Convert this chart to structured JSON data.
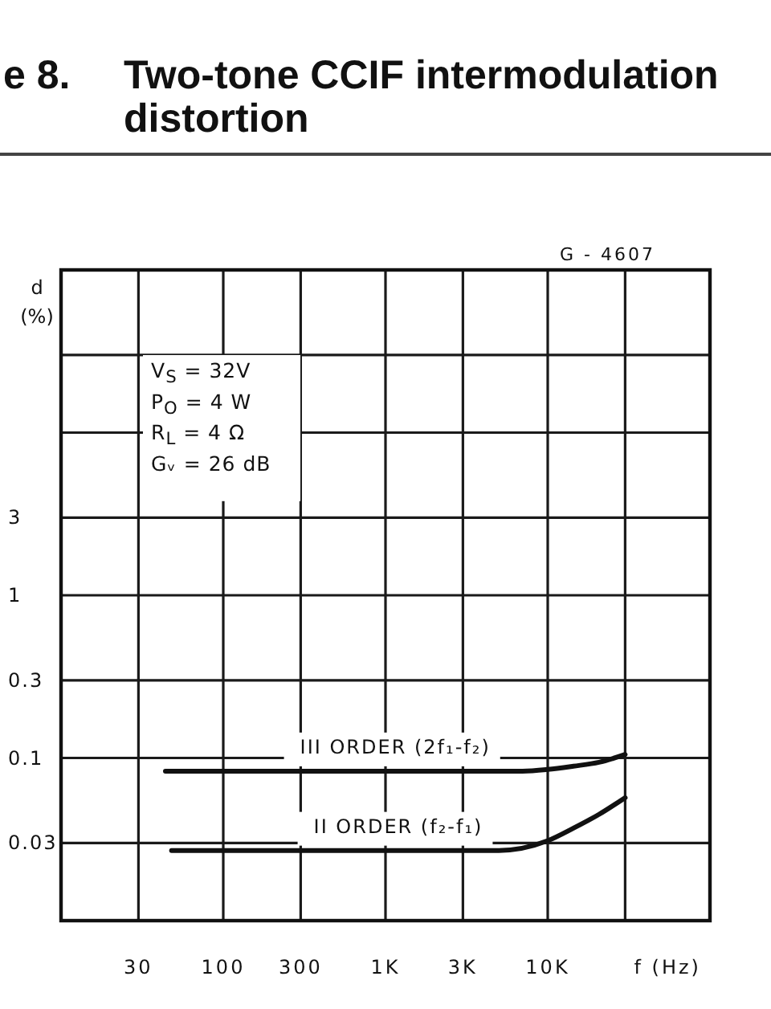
{
  "chart_data": {
    "type": "line",
    "title": "Two-tone CCIF intermodulation distortion",
    "xlabel": "f (Hz)",
    "ylabel": "d (%)",
    "annotations": [
      "e 8.",
      "G - 4607",
      "V$_{S}$ = 32V",
      "P$_{O}$ = 4 W",
      "R$_{L}$ = 4 Ω",
      "Gᵥ = 26 dB"
    ],
    "log": "xy",
    "grid": true,
    "line_style": "solid",
    "xlim": [
      10,
      100000
    ],
    "xticks": [
      30,
      100,
      300,
      {
        "value": 1000,
        "label": "1K"
      },
      {
        "value": 3000,
        "label": "3K"
      },
      {
        "value": 10000,
        "label": "10K"
      },
      {
        "value": 30000,
        "label": null
      }
    ],
    "ylim": [
      0.01,
      100
    ],
    "yticks": [
      0.03,
      0.1,
      0.3,
      1,
      3,
      {
        "value": 10,
        "label": null
      },
      {
        "value": 30,
        "label": null
      }
    ],
    "series": [
      {
        "name": "III ORDER (2f₁-f₂)",
        "color": "#111111",
        "x": [
          44,
          7000,
          10000,
          14400,
          20700,
          30000
        ],
        "values": [
          0.083,
          0.083,
          0.085,
          0.089,
          0.094,
          0.105
        ]
      },
      {
        "name": "II ORDER (f₂-f₁)",
        "color": "#111111",
        "x": [
          48,
          5000,
          10000,
          14400,
          20700,
          30000
        ],
        "values": [
          0.027,
          0.027,
          0.031,
          0.037,
          0.045,
          0.057
        ]
      }
    ]
  }
}
